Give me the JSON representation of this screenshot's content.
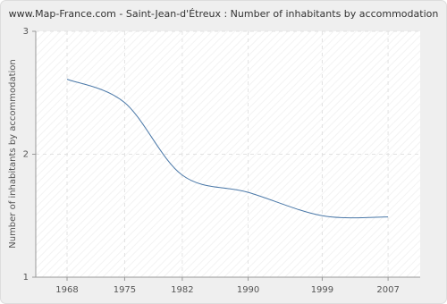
{
  "chart_data": {
    "type": "line",
    "title": "www.Map-France.com - Saint-Jean-d'Étreux : Number of inhabitants by accommodation",
    "y_label": "Number of inhabitants by accommodation",
    "x": [
      1968,
      1975,
      1982,
      1990,
      1999,
      2007
    ],
    "series": [
      {
        "name": "Number of inhabitants by accommodation",
        "color": "#4a78a8",
        "values": [
          2.61,
          2.42,
          1.83,
          1.69,
          1.5,
          1.49
        ]
      }
    ],
    "xlim": [
      1964.2,
      2010.9
    ],
    "xticks": [
      1968,
      1975,
      1982,
      1990,
      1999,
      2007
    ],
    "ylim": [
      1,
      3
    ],
    "yticks": [
      1,
      2,
      3
    ],
    "grid": true
  }
}
